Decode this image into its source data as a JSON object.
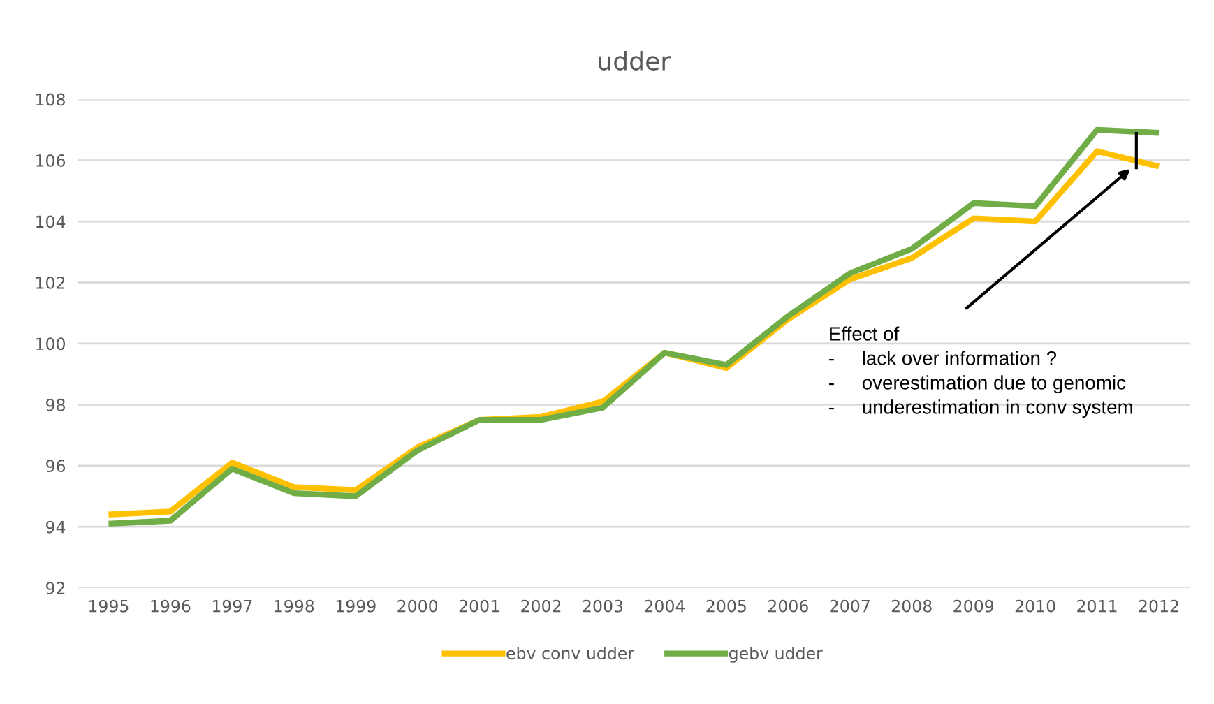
{
  "chart_data": {
    "type": "line",
    "title": "udder",
    "categories": [
      "1995",
      "1996",
      "1997",
      "1998",
      "1999",
      "2000",
      "2001",
      "2002",
      "2003",
      "2004",
      "2005",
      "2006",
      "2007",
      "2008",
      "2009",
      "2010",
      "2011",
      "2012"
    ],
    "series": [
      {
        "name": "ebv conv udder",
        "color": "#ffc000",
        "values": [
          94.4,
          94.5,
          96.1,
          95.3,
          95.2,
          96.6,
          97.5,
          97.6,
          98.1,
          99.7,
          99.2,
          100.8,
          102.1,
          102.8,
          104.1,
          104.0,
          106.3,
          105.8
        ]
      },
      {
        "name": "gebv udder",
        "color": "#70ad47",
        "values": [
          94.1,
          94.2,
          95.9,
          95.1,
          95.0,
          96.5,
          97.5,
          97.5,
          97.9,
          99.7,
          99.3,
          100.9,
          102.3,
          103.1,
          104.6,
          104.5,
          107.0,
          106.9
        ]
      }
    ],
    "ylim": [
      92,
      108
    ],
    "yticks": [
      92,
      94,
      96,
      98,
      100,
      102,
      104,
      106,
      108
    ],
    "grid": "y",
    "legend": "bottom",
    "marker": "none",
    "line_style": "solid",
    "annotations": [
      "Effect of\n-     lack over information ?\n-     overestimation due to genomic\n-     underestimation in conv system"
    ]
  }
}
